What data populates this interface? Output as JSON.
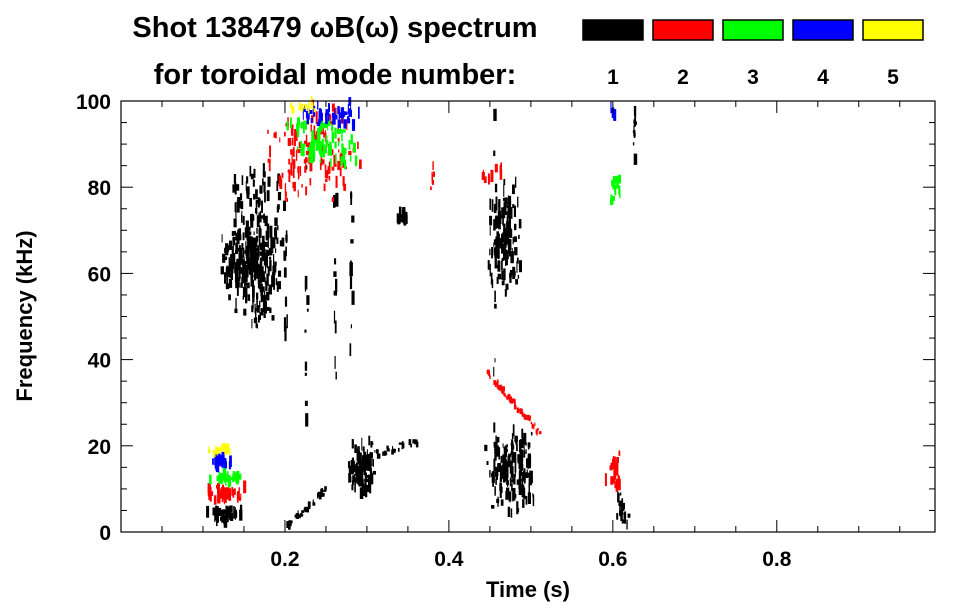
{
  "chart_data": {
    "type": "heatmap",
    "title_line1": "Shot 138479 ωB(ω) spectrum",
    "title_line2": "for toroidal mode number:",
    "xlabel": "Time (s)",
    "ylabel": "Frequency (kHz)",
    "xlim": [
      0.0,
      0.993
    ],
    "ylim": [
      0,
      100
    ],
    "x_ticks": [
      0.2,
      0.4,
      0.6,
      0.8
    ],
    "x_tick_labels": [
      "0.2",
      "0.4",
      "0.6",
      "0.8"
    ],
    "y_ticks": [
      0,
      20,
      40,
      60,
      80,
      100
    ],
    "y_tick_labels": [
      "0",
      "20",
      "40",
      "60",
      "80",
      "100"
    ],
    "legend": [
      {
        "label": "1",
        "color": "#000000"
      },
      {
        "label": "2",
        "color": "#ff0000"
      },
      {
        "label": "3",
        "color": "#00ff00"
      },
      {
        "label": "4",
        "color": "#0000ff"
      },
      {
        "label": "5",
        "color": "#ffff00"
      }
    ],
    "regions": [
      {
        "mode": "1",
        "t": [
          0.13,
          0.2
        ],
        "f": [
          45,
          86
        ],
        "density": 260
      },
      {
        "mode": "1",
        "t": [
          0.12,
          0.17
        ],
        "f": [
          55,
          70
        ],
        "density": 120
      },
      {
        "mode": "1",
        "t": [
          0.1,
          0.15
        ],
        "f": [
          2,
          6
        ],
        "density": 40
      },
      {
        "mode": "1",
        "chirp": [
          [
            0.2,
            1
          ],
          [
            0.25,
            10
          ]
        ],
        "density": 40
      },
      {
        "mode": "1",
        "t": [
          0.275,
          0.31
        ],
        "f": [
          7,
          22
        ],
        "density": 110
      },
      {
        "mode": "1",
        "chirp": [
          [
            0.29,
            17
          ],
          [
            0.36,
            21
          ]
        ],
        "density": 30
      },
      {
        "mode": "1",
        "t": [
          0.335,
          0.35
        ],
        "f": [
          71,
          75
        ],
        "density": 15
      },
      {
        "mode": "1",
        "t": [
          0.445,
          0.49
        ],
        "f": [
          55,
          82
        ],
        "density": 140
      },
      {
        "mode": "1",
        "t": [
          0.44,
          0.51
        ],
        "f": [
          4,
          25
        ],
        "density": 170
      },
      {
        "mode": "1",
        "t": [
          0.6,
          0.62
        ],
        "f": [
          1,
          10
        ],
        "density": 20
      },
      {
        "mode": "1",
        "t": [
          0.624,
          0.627
        ],
        "f": [
          85,
          100
        ],
        "density": 12
      },
      {
        "mode": "1",
        "streak": [
          0.2,
          30,
          80
        ],
        "density": 10
      },
      {
        "mode": "1",
        "streak": [
          0.225,
          25,
          85
        ],
        "density": 10
      },
      {
        "mode": "1",
        "streak": [
          0.26,
          33,
          80
        ],
        "density": 10
      },
      {
        "mode": "1",
        "streak": [
          0.28,
          38,
          80
        ],
        "density": 10
      },
      {
        "mode": "1",
        "streak": [
          0.455,
          0,
          100
        ],
        "density": 14
      },
      {
        "mode": "2",
        "t": [
          0.1,
          0.15
        ],
        "f": [
          7,
          11
        ],
        "density": 40
      },
      {
        "mode": "2",
        "t": [
          0.17,
          0.3
        ],
        "f": [
          74,
          100
        ],
        "density": 120
      },
      {
        "mode": "2",
        "chirp": [
          [
            0.445,
            37
          ],
          [
            0.51,
            23
          ]
        ],
        "density": 60
      },
      {
        "mode": "2",
        "t": [
          0.59,
          0.61
        ],
        "f": [
          9,
          20
        ],
        "density": 25
      },
      {
        "mode": "2",
        "t": [
          0.375,
          0.385
        ],
        "f": [
          79,
          86
        ],
        "density": 6
      },
      {
        "mode": "2",
        "t": [
          0.43,
          0.47
        ],
        "f": [
          80,
          86
        ],
        "density": 10
      },
      {
        "mode": "3",
        "t": [
          0.1,
          0.15
        ],
        "f": [
          11,
          14
        ],
        "density": 30
      },
      {
        "mode": "3",
        "t": [
          0.2,
          0.29
        ],
        "f": [
          84,
          96
        ],
        "density": 80
      },
      {
        "mode": "3",
        "t": [
          0.595,
          0.61
        ],
        "f": [
          74,
          84
        ],
        "density": 15
      },
      {
        "mode": "4",
        "t": [
          0.1,
          0.14
        ],
        "f": [
          15,
          18
        ],
        "density": 25
      },
      {
        "mode": "4",
        "t": [
          0.21,
          0.29
        ],
        "f": [
          94,
          100
        ],
        "density": 50
      },
      {
        "mode": "4",
        "t": [
          0.595,
          0.605
        ],
        "f": [
          94,
          100
        ],
        "density": 8
      },
      {
        "mode": "5",
        "t": [
          0.1,
          0.14
        ],
        "f": [
          18,
          20
        ],
        "density": 15
      },
      {
        "mode": "5",
        "t": [
          0.2,
          0.24
        ],
        "f": [
          97,
          100
        ],
        "density": 10
      }
    ]
  }
}
